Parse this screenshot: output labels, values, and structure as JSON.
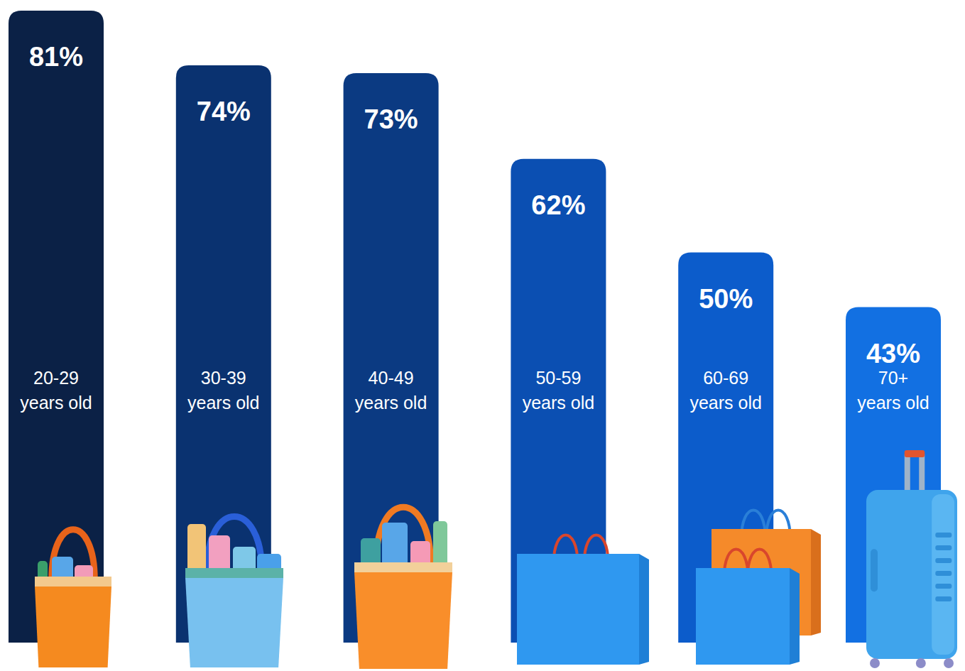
{
  "chart_data": {
    "type": "bar",
    "categories": [
      "20-29 years old",
      "30-39 years old",
      "40-49 years old",
      "50-59 years old",
      "60-69 years old",
      "70+ years old"
    ],
    "values": [
      81,
      74,
      73,
      62,
      50,
      43
    ],
    "value_labels": [
      "81%",
      "74%",
      "73%",
      "62%",
      "50%",
      "43%"
    ],
    "colors": [
      "#0b2146",
      "#0a3270",
      "#0b3a82",
      "#0b4fb2",
      "#0c5ccb",
      "#1270e2"
    ],
    "ylim": [
      0,
      81
    ],
    "data_labels": true,
    "tick_labels": false,
    "grid": false
  }
}
